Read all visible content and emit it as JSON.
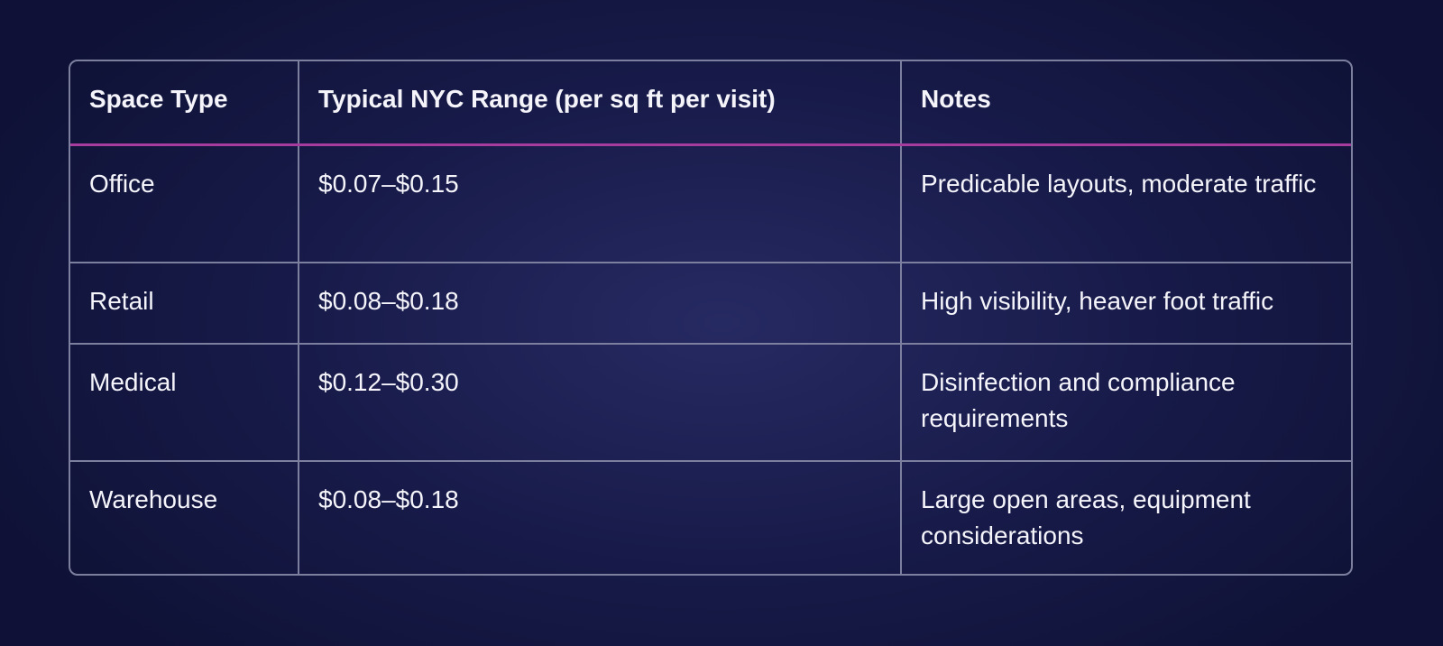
{
  "table": {
    "headers": [
      "Space Type",
      "Typical NYC Range (per sq ft per visit)",
      "Notes"
    ],
    "rows": [
      [
        "Office",
        "$0.07–$0.15",
        "Predicable layouts, moderate traffic"
      ],
      [
        "Retail",
        "$0.08–$0.18",
        "High visibility, heaver foot traffic"
      ],
      [
        "Medical",
        "$0.12–$0.30",
        "Disinfection and compliance requirements"
      ],
      [
        "Warehouse",
        "$0.08–$0.18",
        "Large open areas, equipment considerations"
      ]
    ]
  },
  "colors": {
    "background": "#171a48",
    "border": "#7d7f9e",
    "header_divider": "#a53c9e",
    "text": "#f4f4fa"
  }
}
